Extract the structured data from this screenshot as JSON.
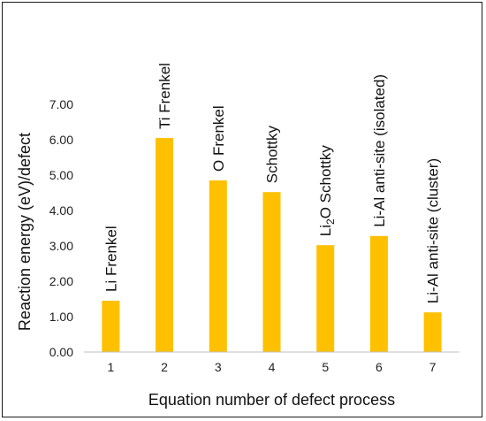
{
  "chart_data": {
    "type": "bar",
    "categories": [
      "1",
      "2",
      "3",
      "4",
      "5",
      "6",
      "7"
    ],
    "values": [
      1.45,
      6.05,
      4.85,
      4.52,
      3.02,
      3.28,
      1.12
    ],
    "bar_labels": [
      {
        "text": "Li Frenkel"
      },
      {
        "text": "Ti Frenkel"
      },
      {
        "text": "O Frenkel"
      },
      {
        "text": "Schottky"
      },
      {
        "text": "Li",
        "sub": "2",
        "rest": "O Schottky"
      },
      {
        "text": "Li-Al anti-site (isolated)"
      },
      {
        "text": "Li-Al anti-site (cluster)"
      }
    ],
    "title": "",
    "xlabel": "Equation number of defect process",
    "ylabel": "Reaction energy (eV)/defect",
    "ylim": [
      0,
      7
    ],
    "yticks": [
      "0.00",
      "1.00",
      "2.00",
      "3.00",
      "4.00",
      "5.00",
      "6.00",
      "7.00"
    ],
    "grid": false,
    "legend": "none",
    "bar_color": "#FFC000"
  }
}
